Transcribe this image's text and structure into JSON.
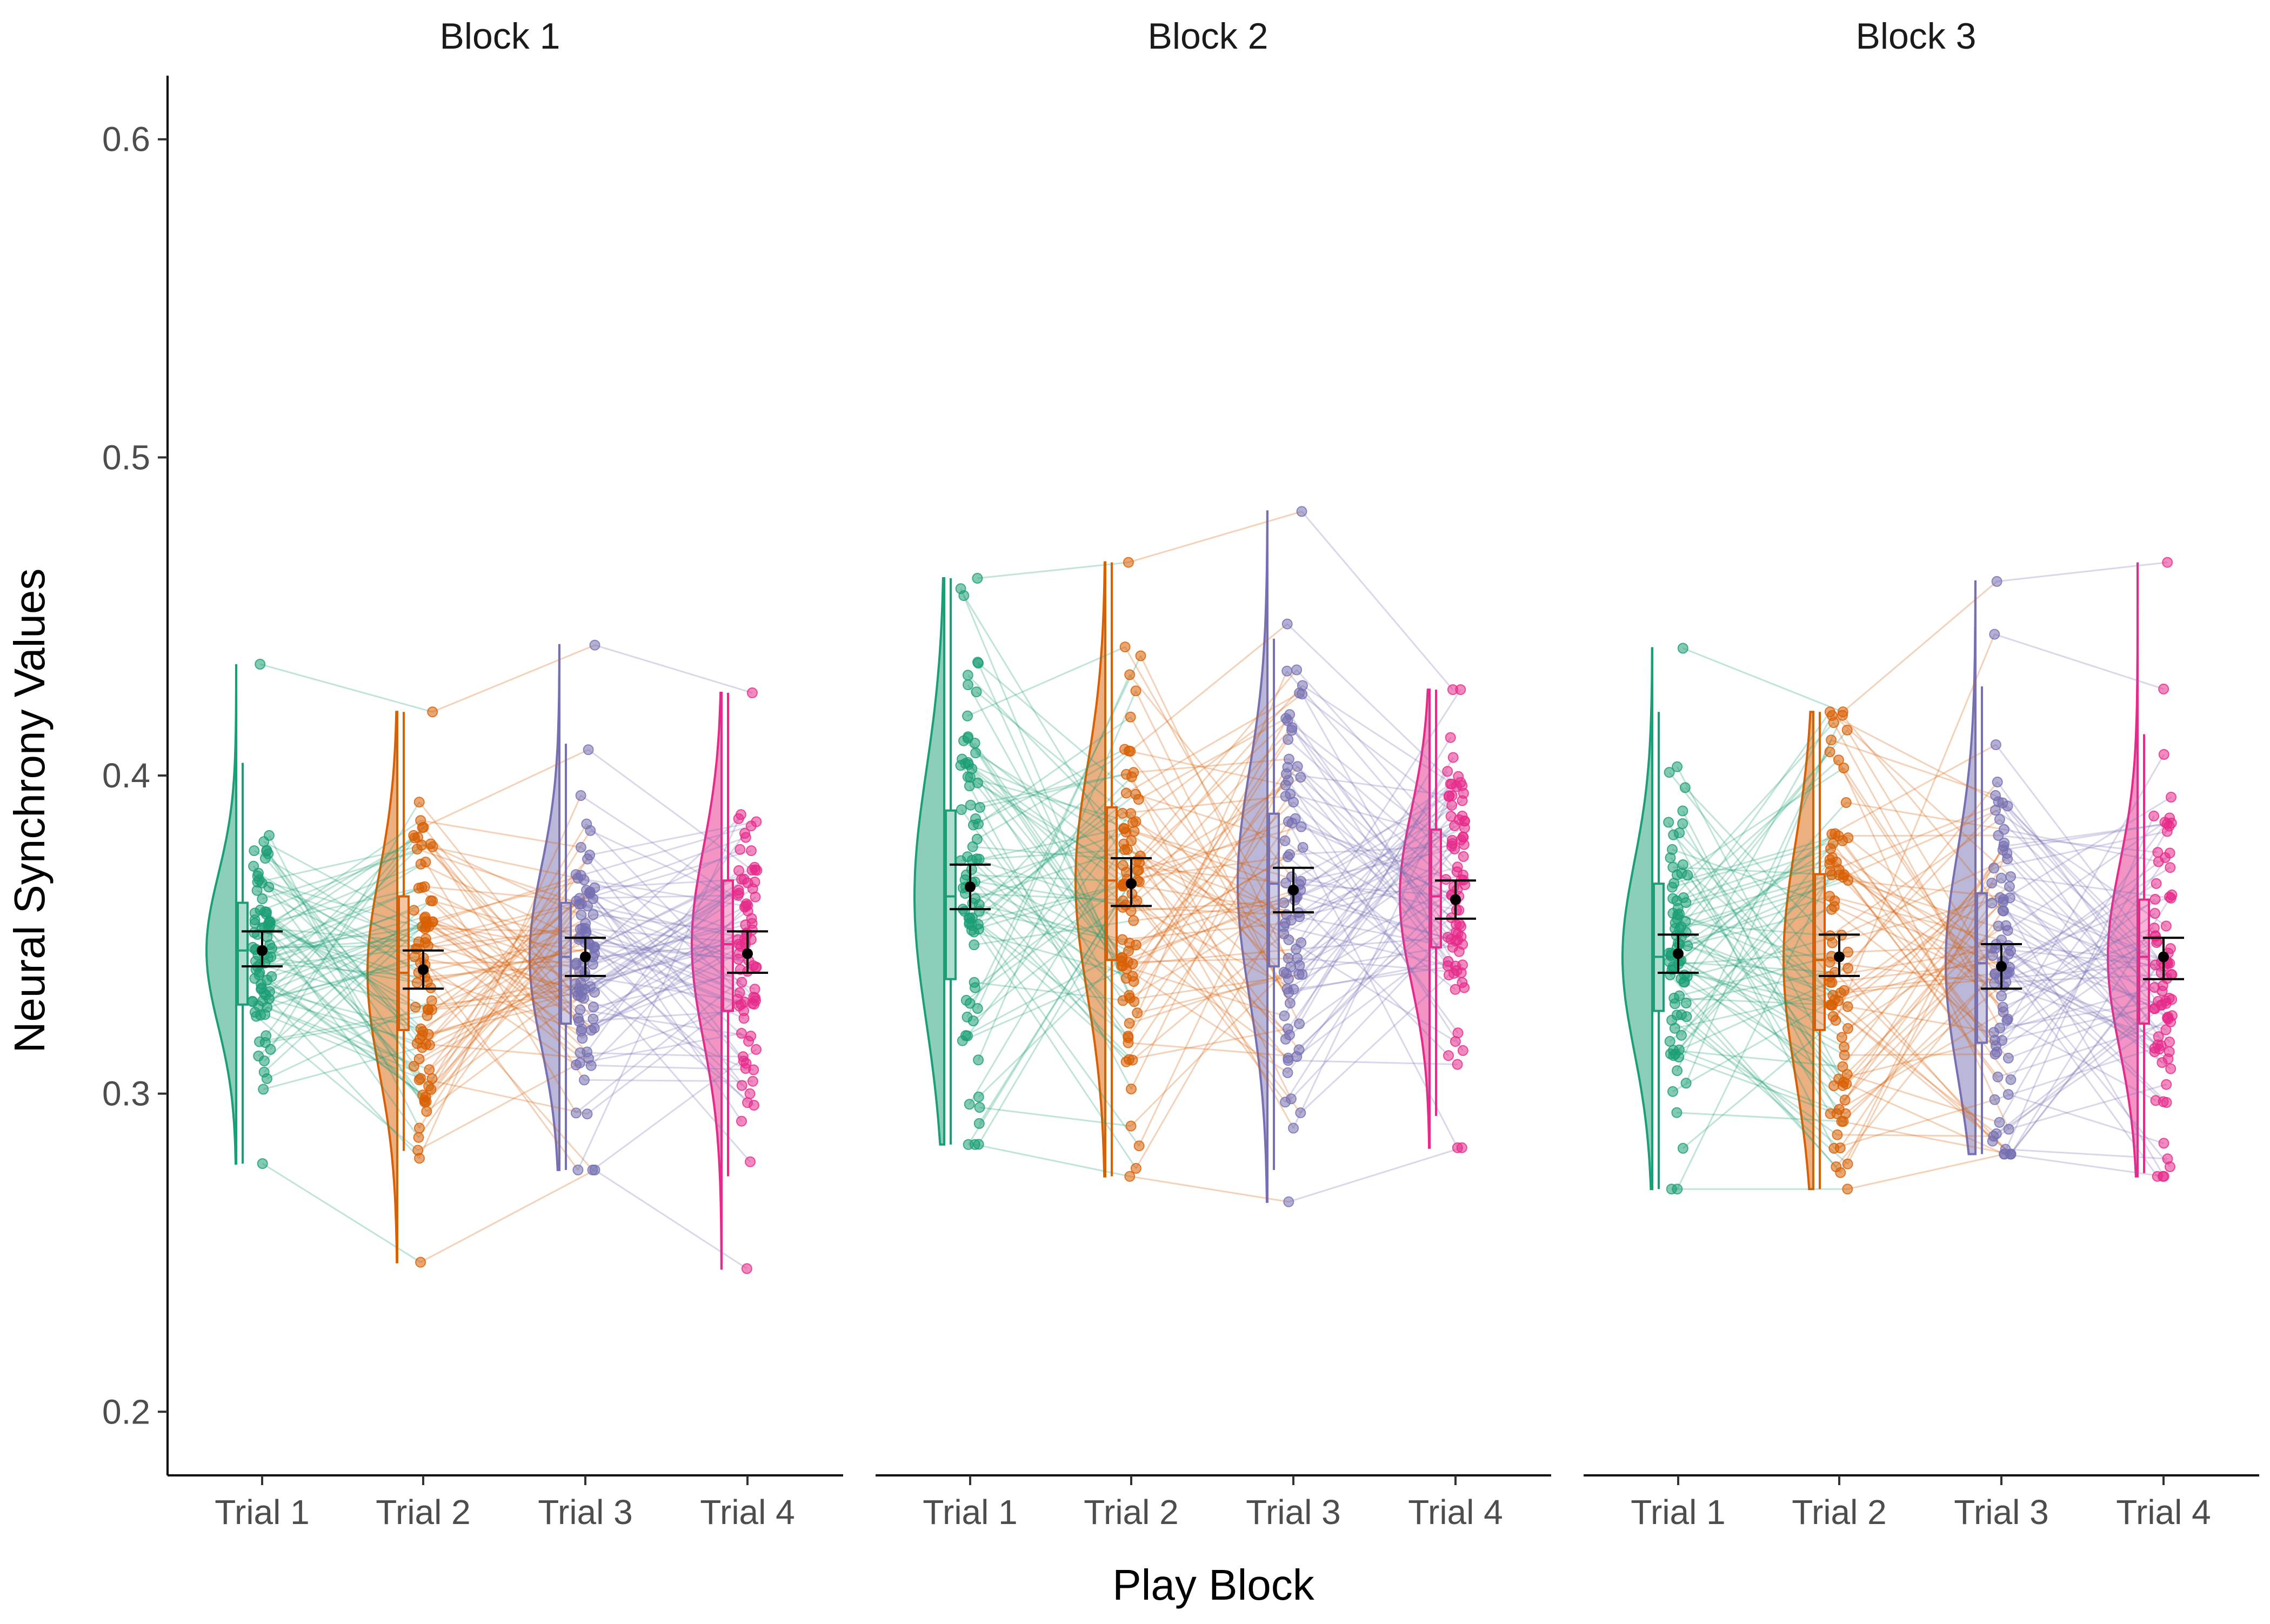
{
  "chart_data": {
    "type": "raincloud",
    "xlabel": "Play Block",
    "ylabel": "Neural Synchrony Values",
    "ylim": [
      0.18,
      0.62
    ],
    "yticks": [
      0.2,
      0.3,
      0.4,
      0.5,
      0.6
    ],
    "grid": false,
    "categories": [
      "Trial 1",
      "Trial 2",
      "Trial 3",
      "Trial 4"
    ],
    "colors": [
      "#1B9E77",
      "#D95F02",
      "#7570B3",
      "#E7298A"
    ],
    "facets": [
      {
        "title": "Block 1",
        "trials": [
          {
            "name": "Trial 1",
            "mean": 0.345,
            "se_low": 0.34,
            "se_high": 0.351,
            "q1": 0.328,
            "median": 0.345,
            "q3": 0.36,
            "whisker_low": 0.278,
            "whisker_high": 0.404,
            "min": 0.278,
            "max": 0.435
          },
          {
            "name": "Trial 2",
            "mean": 0.339,
            "se_low": 0.333,
            "se_high": 0.345,
            "q1": 0.32,
            "median": 0.338,
            "q3": 0.362,
            "whisker_low": 0.282,
            "whisker_high": 0.42,
            "min": 0.247,
            "max": 0.42
          },
          {
            "name": "Trial 3",
            "mean": 0.343,
            "se_low": 0.337,
            "se_high": 0.349,
            "q1": 0.322,
            "median": 0.343,
            "q3": 0.36,
            "whisker_low": 0.276,
            "whisker_high": 0.41,
            "min": 0.276,
            "max": 0.441
          },
          {
            "name": "Trial 4",
            "mean": 0.344,
            "se_low": 0.338,
            "se_high": 0.351,
            "q1": 0.326,
            "median": 0.347,
            "q3": 0.367,
            "whisker_low": 0.274,
            "whisker_high": 0.426,
            "min": 0.245,
            "max": 0.426
          }
        ]
      },
      {
        "title": "Block 2",
        "trials": [
          {
            "name": "Trial 1",
            "mean": 0.365,
            "se_low": 0.358,
            "se_high": 0.372,
            "q1": 0.336,
            "median": 0.362,
            "q3": 0.389,
            "whisker_low": 0.284,
            "whisker_high": 0.462,
            "min": 0.284,
            "max": 0.462
          },
          {
            "name": "Trial 2",
            "mean": 0.366,
            "se_low": 0.359,
            "se_high": 0.374,
            "q1": 0.342,
            "median": 0.367,
            "q3": 0.39,
            "whisker_low": 0.274,
            "whisker_high": 0.467,
            "min": 0.274,
            "max": 0.467
          },
          {
            "name": "Trial 3",
            "mean": 0.364,
            "se_low": 0.357,
            "se_high": 0.371,
            "q1": 0.34,
            "median": 0.366,
            "q3": 0.388,
            "whisker_low": 0.276,
            "whisker_high": 0.443,
            "min": 0.266,
            "max": 0.483
          },
          {
            "name": "Trial 4",
            "mean": 0.361,
            "se_low": 0.355,
            "se_high": 0.367,
            "q1": 0.346,
            "median": 0.362,
            "q3": 0.383,
            "whisker_low": 0.293,
            "whisker_high": 0.427,
            "min": 0.283,
            "max": 0.427
          }
        ]
      },
      {
        "title": "Block 3",
        "trials": [
          {
            "name": "Trial 1",
            "mean": 0.344,
            "se_low": 0.338,
            "se_high": 0.35,
            "q1": 0.326,
            "median": 0.343,
            "q3": 0.366,
            "whisker_low": 0.27,
            "whisker_high": 0.42,
            "min": 0.27,
            "max": 0.44
          },
          {
            "name": "Trial 2",
            "mean": 0.343,
            "se_low": 0.337,
            "se_high": 0.35,
            "q1": 0.32,
            "median": 0.342,
            "q3": 0.369,
            "whisker_low": 0.27,
            "whisker_high": 0.42,
            "min": 0.27,
            "max": 0.42
          },
          {
            "name": "Trial 3",
            "mean": 0.34,
            "se_low": 0.333,
            "se_high": 0.347,
            "q1": 0.316,
            "median": 0.341,
            "q3": 0.363,
            "whisker_low": 0.281,
            "whisker_high": 0.428,
            "min": 0.281,
            "max": 0.461
          },
          {
            "name": "Trial 4",
            "mean": 0.343,
            "se_low": 0.336,
            "se_high": 0.349,
            "q1": 0.322,
            "median": 0.343,
            "q3": 0.361,
            "whisker_low": 0.275,
            "whisker_high": 0.413,
            "min": 0.274,
            "max": 0.467
          }
        ]
      }
    ]
  }
}
